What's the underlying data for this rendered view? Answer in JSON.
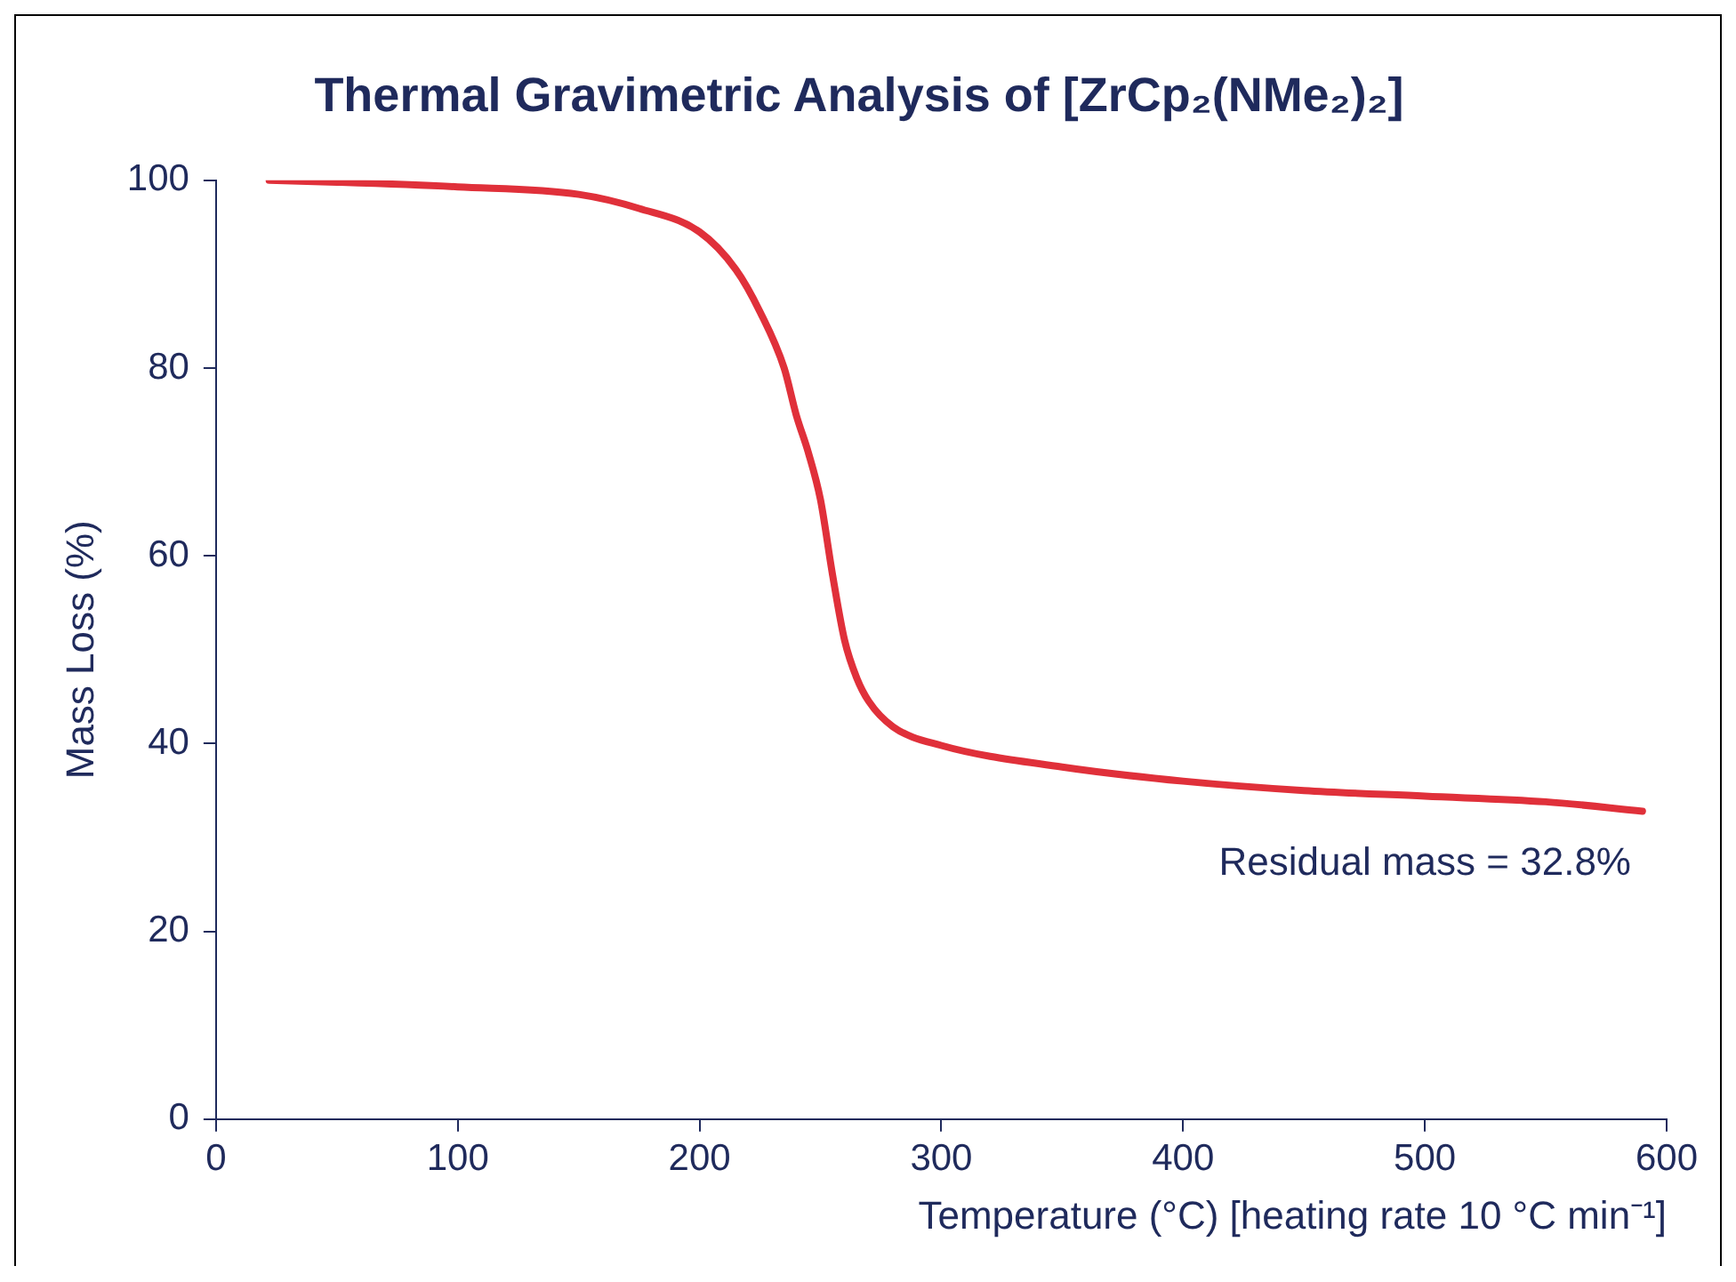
{
  "chart_data": {
    "type": "line",
    "title": "Thermal Gravimetric Analysis of [ZrCp₂(NMe₂)₂]",
    "xlabel": "Temperature (°C) [heating rate 10 °C min⁻¹]",
    "ylabel": "Mass Loss (%)",
    "x": [
      22,
      50,
      100,
      150,
      175,
      200,
      215,
      225,
      235,
      240,
      245,
      250,
      255,
      260,
      265,
      270,
      280,
      300,
      350,
      400,
      450,
      500,
      550,
      590
    ],
    "series": [
      {
        "color": "#e0303a",
        "values": [
          100,
          99.8,
          99.3,
          98.5,
          97,
          94.5,
          90.5,
          86,
          80,
          75,
          71,
          66,
          58,
          51,
          47,
          44.5,
          41.8,
          39.8,
          37.5,
          36,
          35,
          34.4,
          33.8,
          32.8
        ]
      }
    ],
    "xlim": [
      0,
      600
    ],
    "xticks": [
      0,
      100,
      200,
      300,
      400,
      500,
      600
    ],
    "ylim": [
      0,
      100
    ],
    "yticks": [
      0,
      20,
      40,
      60,
      80,
      100
    ],
    "grid": false,
    "legend": false,
    "marker": "none",
    "line_style": "solid",
    "annotations": [
      "Residual mass = 32.8%"
    ]
  }
}
